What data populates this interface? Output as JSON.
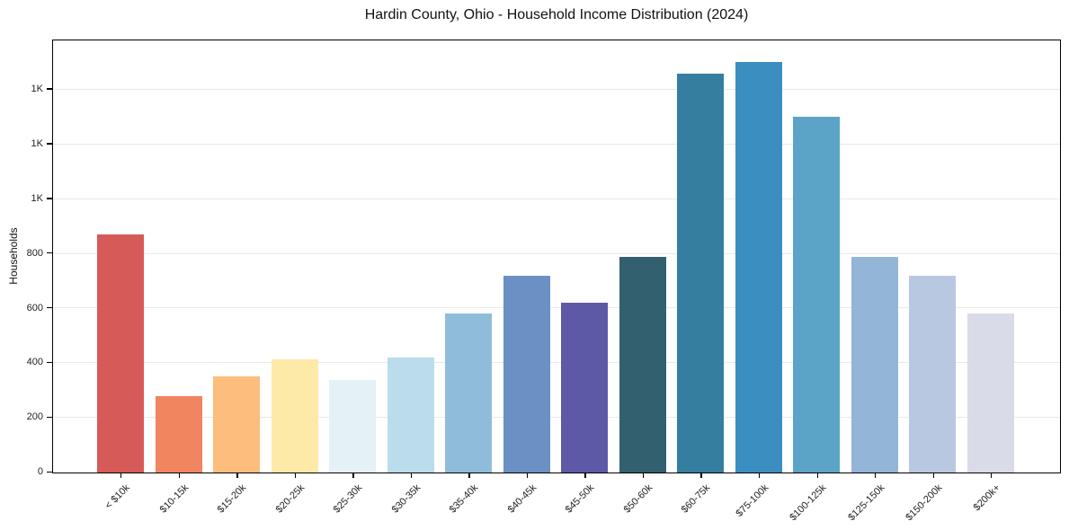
{
  "title": "Hardin County, Ohio - Household Income Distribution (2024)",
  "chart_data": {
    "type": "bar",
    "title": "Hardin County, Ohio - Household Income Distribution (2024)",
    "xlabel": "",
    "ylabel": "Households",
    "categories": [
      "< $10k",
      "$10-15k",
      "$15-20k",
      "$20-25k",
      "$25-30k",
      "$30-35k",
      "$35-40k",
      "$40-45k",
      "$45-50k",
      "$50-60k",
      "$60-75k",
      "$75-100k",
      "$100-125k",
      "$125-150k",
      "$150-200k",
      "$200k+"
    ],
    "values": [
      870,
      280,
      350,
      415,
      340,
      420,
      580,
      720,
      620,
      790,
      1460,
      1500,
      1300,
      790,
      720,
      580
    ],
    "bar_colors": [
      "#d65a57",
      "#f0855f",
      "#fcbd7d",
      "#fdeaa8",
      "#e4f1f7",
      "#bbdcea",
      "#8ebcda",
      "#6b90c4",
      "#5d59a6",
      "#33606f",
      "#357ea0",
      "#3a8fc0",
      "#5ba3c7",
      "#92b5d8",
      "#b9c8e1",
      "#d9dbe9"
    ],
    "ylim": [
      0,
      1575
    ],
    "yticks": [
      0,
      200,
      400,
      600,
      800,
      1000,
      1200,
      1400
    ],
    "ytick_labels": [
      "0",
      "200",
      "400",
      "600",
      "800",
      "1K",
      "1K",
      "1K"
    ],
    "grid": "horizontal gridlines on",
    "legend": "none"
  },
  "colors": {
    "background": "#ffffff",
    "grid": "#e9e9e9",
    "spine": "#000000",
    "text": "#1a1a1a"
  }
}
